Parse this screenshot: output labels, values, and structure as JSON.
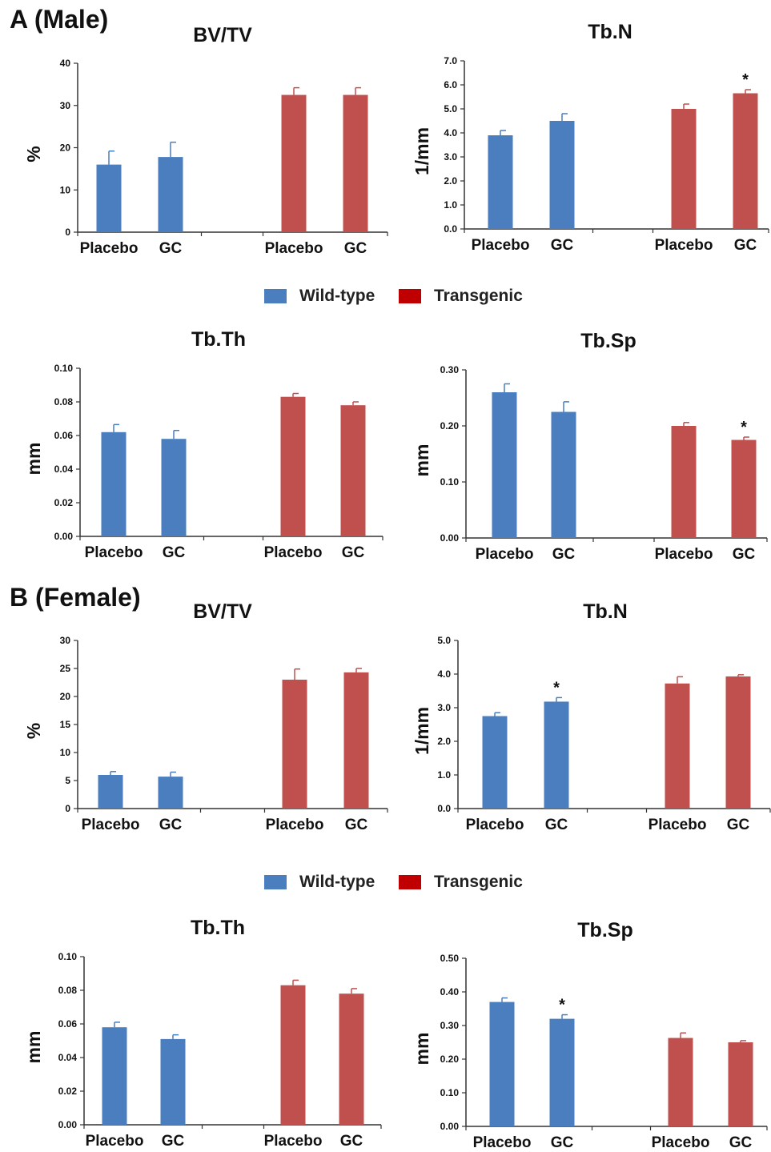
{
  "sections": [
    {
      "label": "A (Male)"
    },
    {
      "label": "B (Female)"
    }
  ],
  "legend": {
    "entries": [
      {
        "label": "Wild-type",
        "color": "#4a7ebf"
      },
      {
        "label": "Transgenic",
        "color": "#c00000"
      }
    ]
  },
  "colors": {
    "wildtype_bar": "#4a7ebf",
    "transgenic_bar": "#c0504d"
  },
  "chart_data": [
    {
      "type": "bar",
      "title": "BV/TV",
      "ylabel": "%",
      "ylim": [
        0,
        40
      ],
      "yticks": [
        "0",
        "10",
        "20",
        "30",
        "40"
      ],
      "categories": [
        "Placebo",
        "GC",
        "Placebo",
        "GC"
      ],
      "series": [
        {
          "name": "Wild-type",
          "values": [
            16.0,
            17.8,
            null,
            null
          ],
          "errors": [
            3.2,
            3.5,
            null,
            null
          ]
        },
        {
          "name": "Transgenic",
          "values": [
            null,
            null,
            32.5,
            32.5
          ],
          "errors": [
            null,
            null,
            1.7,
            1.7
          ]
        }
      ],
      "annotations": [
        "",
        "",
        "",
        ""
      ]
    },
    {
      "type": "bar",
      "title": "Tb.N",
      "ylabel": "1/mm",
      "ylim": [
        0,
        7
      ],
      "yticks": [
        "0.0",
        "1.0",
        "2.0",
        "3.0",
        "4.0",
        "5.0",
        "6.0",
        "7.0"
      ],
      "categories": [
        "Placebo",
        "GC",
        "Placebo",
        "GC"
      ],
      "series": [
        {
          "name": "Wild-type",
          "values": [
            3.9,
            4.5,
            null,
            null
          ],
          "errors": [
            0.2,
            0.3,
            null,
            null
          ]
        },
        {
          "name": "Transgenic",
          "values": [
            null,
            null,
            5.0,
            5.65
          ],
          "errors": [
            null,
            null,
            0.2,
            0.15
          ]
        }
      ],
      "annotations": [
        "",
        "",
        "",
        "*"
      ]
    },
    {
      "type": "bar",
      "title": "Tb.Th",
      "ylabel": "mm",
      "ylim": [
        0,
        0.1
      ],
      "yticks": [
        "0.00",
        "0.02",
        "0.04",
        "0.06",
        "0.08",
        "0.10"
      ],
      "categories": [
        "Placebo",
        "GC",
        "Placebo",
        "GC"
      ],
      "series": [
        {
          "name": "Wild-type",
          "values": [
            0.062,
            0.058,
            null,
            null
          ],
          "errors": [
            0.0045,
            0.005,
            null,
            null
          ]
        },
        {
          "name": "Transgenic",
          "values": [
            null,
            null,
            0.083,
            0.078
          ],
          "errors": [
            null,
            null,
            0.002,
            0.002
          ]
        }
      ],
      "annotations": [
        "",
        "",
        "",
        ""
      ]
    },
    {
      "type": "bar",
      "title": "Tb.Sp",
      "ylabel": "mm",
      "ylim": [
        0,
        0.3
      ],
      "yticks": [
        "0.00",
        "0.10",
        "0.20",
        "0.30"
      ],
      "categories": [
        "Placebo",
        "GC",
        "Placebo",
        "GC"
      ],
      "series": [
        {
          "name": "Wild-type",
          "values": [
            0.26,
            0.225,
            null,
            null
          ],
          "errors": [
            0.015,
            0.018,
            null,
            null
          ]
        },
        {
          "name": "Transgenic",
          "values": [
            null,
            null,
            0.2,
            0.175
          ],
          "errors": [
            null,
            null,
            0.006,
            0.005
          ]
        }
      ],
      "annotations": [
        "",
        "",
        "",
        "*"
      ]
    },
    {
      "type": "bar",
      "title": "BV/TV",
      "ylabel": "%",
      "ylim": [
        0,
        30
      ],
      "yticks": [
        "0",
        "5",
        "10",
        "15",
        "20",
        "25",
        "30"
      ],
      "categories": [
        "Placebo",
        "GC",
        "Placebo",
        "GC"
      ],
      "series": [
        {
          "name": "Wild-type",
          "values": [
            6.0,
            5.7,
            null,
            null
          ],
          "errors": [
            0.6,
            0.8,
            null,
            null
          ]
        },
        {
          "name": "Transgenic",
          "values": [
            null,
            null,
            23.0,
            24.3
          ],
          "errors": [
            null,
            null,
            1.9,
            0.7
          ]
        }
      ],
      "annotations": [
        "",
        "",
        "",
        ""
      ]
    },
    {
      "type": "bar",
      "title": "Tb.N",
      "ylabel": "1/mm",
      "ylim": [
        0,
        5
      ],
      "yticks": [
        "0.0",
        "1.0",
        "2.0",
        "3.0",
        "4.0",
        "5.0"
      ],
      "categories": [
        "Placebo",
        "GC",
        "Placebo",
        "GC"
      ],
      "series": [
        {
          "name": "Wild-type",
          "values": [
            2.75,
            3.18,
            null,
            null
          ],
          "errors": [
            0.1,
            0.12,
            null,
            null
          ]
        },
        {
          "name": "Transgenic",
          "values": [
            null,
            null,
            3.72,
            3.93
          ],
          "errors": [
            null,
            null,
            0.2,
            0.05
          ]
        }
      ],
      "annotations": [
        "",
        "*",
        "",
        ""
      ]
    },
    {
      "type": "bar",
      "title": "Tb.Th",
      "ylabel": "mm",
      "ylim": [
        0,
        0.1
      ],
      "yticks": [
        "0.00",
        "0.02",
        "0.04",
        "0.06",
        "0.08",
        "0.10"
      ],
      "categories": [
        "Placebo",
        "GC",
        "Placebo",
        "GC"
      ],
      "series": [
        {
          "name": "Wild-type",
          "values": [
            0.058,
            0.051,
            null,
            null
          ],
          "errors": [
            0.003,
            0.0025,
            null,
            null
          ]
        },
        {
          "name": "Transgenic",
          "values": [
            null,
            null,
            0.083,
            0.078
          ],
          "errors": [
            null,
            null,
            0.003,
            0.003
          ]
        }
      ],
      "annotations": [
        "",
        "",
        "",
        ""
      ]
    },
    {
      "type": "bar",
      "title": "Tb.Sp",
      "ylabel": "mm",
      "ylim": [
        0,
        0.5
      ],
      "yticks": [
        "0.00",
        "0.10",
        "0.20",
        "0.30",
        "0.40",
        "0.50"
      ],
      "categories": [
        "Placebo",
        "GC",
        "Placebo",
        "GC"
      ],
      "series": [
        {
          "name": "Wild-type",
          "values": [
            0.37,
            0.32,
            null,
            null
          ],
          "errors": [
            0.012,
            0.012,
            null,
            null
          ]
        },
        {
          "name": "Transgenic",
          "values": [
            null,
            null,
            0.263,
            0.25
          ],
          "errors": [
            null,
            null,
            0.015,
            0.005
          ]
        }
      ],
      "annotations": [
        "",
        "*",
        "",
        ""
      ]
    }
  ]
}
